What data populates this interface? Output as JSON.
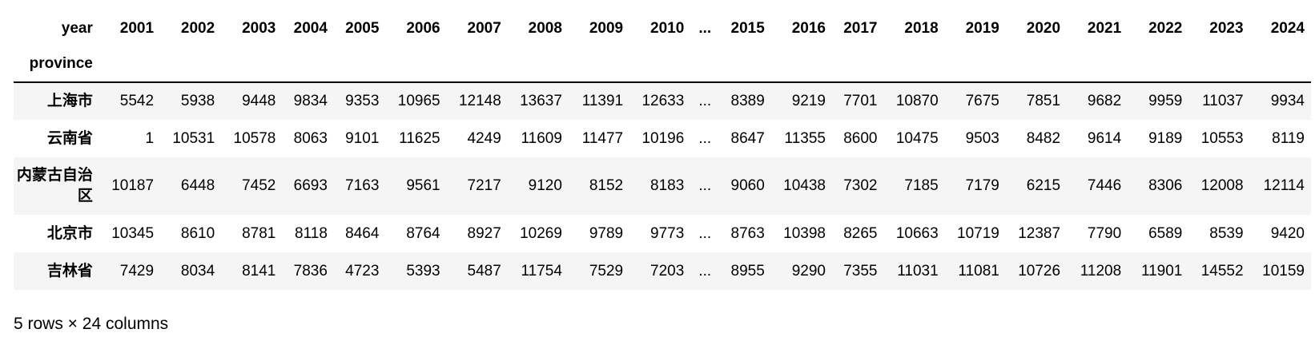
{
  "columns_label": "year",
  "index_label": "province",
  "columns": [
    "2001",
    "2002",
    "2003",
    "2004",
    "2005",
    "2006",
    "2007",
    "2008",
    "2009",
    "2010",
    "...",
    "2015",
    "2016",
    "2017",
    "2018",
    "2019",
    "2020",
    "2021",
    "2022",
    "2023",
    "2024"
  ],
  "rows": [
    {
      "province": "上海市",
      "values": [
        "5542",
        "5938",
        "9448",
        "9834",
        "9353",
        "10965",
        "12148",
        "13637",
        "11391",
        "12633",
        "...",
        "8389",
        "9219",
        "7701",
        "10870",
        "7675",
        "7851",
        "9682",
        "9959",
        "11037",
        "9934"
      ]
    },
    {
      "province": "云南省",
      "values": [
        "1",
        "10531",
        "10578",
        "8063",
        "9101",
        "11625",
        "4249",
        "11609",
        "11477",
        "10196",
        "...",
        "8647",
        "11355",
        "8600",
        "10475",
        "9503",
        "8482",
        "9614",
        "9189",
        "10553",
        "8119"
      ]
    },
    {
      "province": "内蒙古自治区",
      "values": [
        "10187",
        "6448",
        "7452",
        "6693",
        "7163",
        "9561",
        "7217",
        "9120",
        "8152",
        "8183",
        "...",
        "9060",
        "10438",
        "7302",
        "7185",
        "7179",
        "6215",
        "7446",
        "8306",
        "12008",
        "12114"
      ]
    },
    {
      "province": "北京市",
      "values": [
        "10345",
        "8610",
        "8781",
        "8118",
        "8464",
        "8764",
        "8927",
        "10269",
        "9789",
        "9773",
        "...",
        "8763",
        "10398",
        "8265",
        "10663",
        "10719",
        "12387",
        "7790",
        "6589",
        "8539",
        "9420"
      ]
    },
    {
      "province": "吉林省",
      "values": [
        "7429",
        "8034",
        "8141",
        "7836",
        "4723",
        "5393",
        "5487",
        "11754",
        "7529",
        "7203",
        "...",
        "8955",
        "9290",
        "7355",
        "11031",
        "11081",
        "10726",
        "11208",
        "11901",
        "14552",
        "10159"
      ]
    }
  ],
  "footer": "5 rows × 24 columns"
}
